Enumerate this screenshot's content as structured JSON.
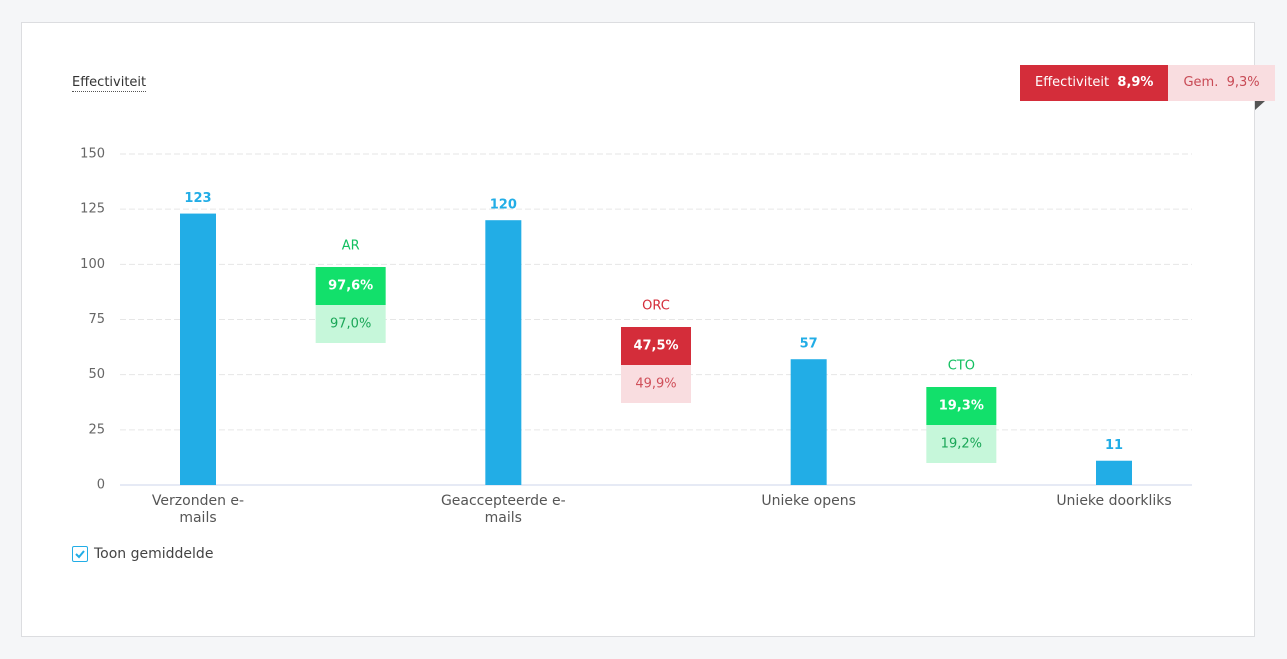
{
  "header": {
    "title": "Effectiviteit"
  },
  "badge": {
    "label": "Effectiviteit",
    "value": "8,9%",
    "avg_label": "Gem.",
    "avg_value": "9,3%"
  },
  "checkbox": {
    "label": "Toon gemiddelde",
    "checked": true
  },
  "chart_data": {
    "type": "bar",
    "categories": [
      "Verzonden e-mails",
      "Geaccepteerde e-mails",
      "Unieke opens",
      "Unieke doorkliks"
    ],
    "values": [
      123,
      120,
      57,
      11
    ],
    "color": "#22ade6",
    "ylim": [
      0,
      150
    ],
    "yticks": [
      0,
      25,
      50,
      75,
      100,
      125,
      150
    ],
    "grid": true,
    "rates": [
      {
        "name": "AR",
        "value": 97.6,
        "value_label": "97,6%",
        "average": 97.0,
        "average_label": "97,0%",
        "color": "#12e06b",
        "avg_color": "#c6f7da",
        "text_color": "#12c060",
        "avg_text_color": "#1aa657"
      },
      {
        "name": "ORC",
        "value": 47.5,
        "value_label": "47,5%",
        "average": 49.9,
        "average_label": "49,9%",
        "color": "#d42d3a",
        "avg_color": "#f9dde0",
        "text_color": "#d42d3a",
        "avg_text_color": "#d0505a"
      },
      {
        "name": "CTO",
        "value": 19.3,
        "value_label": "19,3%",
        "average": 19.2,
        "average_label": "19,2%",
        "color": "#12e06b",
        "avg_color": "#c6f7da",
        "text_color": "#12c060",
        "avg_text_color": "#1aa657"
      }
    ]
  }
}
